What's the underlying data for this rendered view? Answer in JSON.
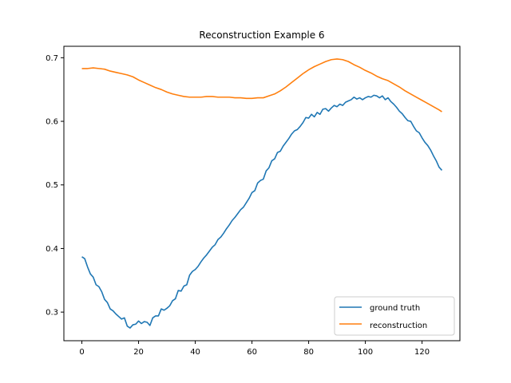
{
  "chart_data": {
    "type": "line",
    "title": "Reconstruction Example 6",
    "xlabel": "",
    "ylabel": "",
    "xlim": [
      -6.35,
      133.35
    ],
    "ylim": [
      0.255,
      0.718
    ],
    "xticks": [
      0,
      20,
      40,
      60,
      80,
      100,
      120
    ],
    "yticks": [
      0.3,
      0.4,
      0.5,
      0.6,
      0.7
    ],
    "xtick_labels": [
      "0",
      "20",
      "40",
      "60",
      "80",
      "100",
      "120"
    ],
    "ytick_labels": [
      "0.3",
      "0.4",
      "0.5",
      "0.6",
      "0.7"
    ],
    "grid": false,
    "legend_position": "lower-right",
    "series": [
      {
        "name": "ground truth",
        "color": "#1f77b4",
        "points": [
          [
            0,
            0.387
          ],
          [
            1,
            0.384
          ],
          [
            2,
            0.371
          ],
          [
            3,
            0.36
          ],
          [
            4,
            0.355
          ],
          [
            5,
            0.343
          ],
          [
            6,
            0.34
          ],
          [
            7,
            0.332
          ],
          [
            8,
            0.32
          ],
          [
            9,
            0.315
          ],
          [
            10,
            0.305
          ],
          [
            11,
            0.302
          ],
          [
            12,
            0.297
          ],
          [
            13,
            0.293
          ],
          [
            14,
            0.289
          ],
          [
            15,
            0.291
          ],
          [
            16,
            0.278
          ],
          [
            17,
            0.275
          ],
          [
            18,
            0.28
          ],
          [
            19,
            0.281
          ],
          [
            20,
            0.286
          ],
          [
            21,
            0.282
          ],
          [
            22,
            0.285
          ],
          [
            23,
            0.284
          ],
          [
            24,
            0.279
          ],
          [
            25,
            0.291
          ],
          [
            26,
            0.294
          ],
          [
            27,
            0.294
          ],
          [
            28,
            0.305
          ],
          [
            29,
            0.303
          ],
          [
            30,
            0.306
          ],
          [
            31,
            0.31
          ],
          [
            32,
            0.318
          ],
          [
            33,
            0.321
          ],
          [
            34,
            0.334
          ],
          [
            35,
            0.333
          ],
          [
            36,
            0.341
          ],
          [
            37,
            0.343
          ],
          [
            38,
            0.358
          ],
          [
            39,
            0.364
          ],
          [
            40,
            0.367
          ],
          [
            41,
            0.372
          ],
          [
            42,
            0.379
          ],
          [
            43,
            0.385
          ],
          [
            44,
            0.39
          ],
          [
            45,
            0.396
          ],
          [
            46,
            0.402
          ],
          [
            47,
            0.406
          ],
          [
            48,
            0.414
          ],
          [
            49,
            0.418
          ],
          [
            50,
            0.424
          ],
          [
            51,
            0.431
          ],
          [
            52,
            0.437
          ],
          [
            53,
            0.444
          ],
          [
            54,
            0.449
          ],
          [
            55,
            0.455
          ],
          [
            56,
            0.461
          ],
          [
            57,
            0.465
          ],
          [
            58,
            0.472
          ],
          [
            59,
            0.479
          ],
          [
            60,
            0.488
          ],
          [
            61,
            0.491
          ],
          [
            62,
            0.503
          ],
          [
            63,
            0.507
          ],
          [
            64,
            0.509
          ],
          [
            65,
            0.522
          ],
          [
            66,
            0.527
          ],
          [
            67,
            0.538
          ],
          [
            68,
            0.541
          ],
          [
            69,
            0.551
          ],
          [
            70,
            0.553
          ],
          [
            71,
            0.561
          ],
          [
            72,
            0.567
          ],
          [
            73,
            0.573
          ],
          [
            74,
            0.58
          ],
          [
            75,
            0.585
          ],
          [
            76,
            0.587
          ],
          [
            77,
            0.592
          ],
          [
            78,
            0.598
          ],
          [
            79,
            0.606
          ],
          [
            80,
            0.605
          ],
          [
            81,
            0.611
          ],
          [
            82,
            0.607
          ],
          [
            83,
            0.614
          ],
          [
            84,
            0.611
          ],
          [
            85,
            0.619
          ],
          [
            86,
            0.62
          ],
          [
            87,
            0.616
          ],
          [
            88,
            0.621
          ],
          [
            89,
            0.625
          ],
          [
            90,
            0.623
          ],
          [
            91,
            0.627
          ],
          [
            92,
            0.625
          ],
          [
            93,
            0.63
          ],
          [
            94,
            0.632
          ],
          [
            95,
            0.634
          ],
          [
            96,
            0.638
          ],
          [
            97,
            0.635
          ],
          [
            98,
            0.637
          ],
          [
            99,
            0.634
          ],
          [
            100,
            0.637
          ],
          [
            101,
            0.639
          ],
          [
            102,
            0.638
          ],
          [
            103,
            0.641
          ],
          [
            104,
            0.64
          ],
          [
            105,
            0.637
          ],
          [
            106,
            0.64
          ],
          [
            107,
            0.634
          ],
          [
            108,
            0.637
          ],
          [
            109,
            0.631
          ],
          [
            110,
            0.627
          ],
          [
            111,
            0.622
          ],
          [
            112,
            0.616
          ],
          [
            113,
            0.612
          ],
          [
            114,
            0.606
          ],
          [
            115,
            0.601
          ],
          [
            116,
            0.6
          ],
          [
            117,
            0.592
          ],
          [
            118,
            0.585
          ],
          [
            119,
            0.582
          ],
          [
            120,
            0.574
          ],
          [
            121,
            0.567
          ],
          [
            122,
            0.562
          ],
          [
            123,
            0.555
          ],
          [
            124,
            0.546
          ],
          [
            125,
            0.538
          ],
          [
            126,
            0.528
          ],
          [
            127,
            0.523
          ]
        ]
      },
      {
        "name": "reconstruction",
        "color": "#ff7f0e",
        "points": [
          [
            0,
            0.683
          ],
          [
            2,
            0.683
          ],
          [
            4,
            0.684
          ],
          [
            6,
            0.683
          ],
          [
            8,
            0.682
          ],
          [
            10,
            0.679
          ],
          [
            12,
            0.677
          ],
          [
            14,
            0.675
          ],
          [
            16,
            0.673
          ],
          [
            18,
            0.67
          ],
          [
            20,
            0.665
          ],
          [
            22,
            0.661
          ],
          [
            24,
            0.657
          ],
          [
            26,
            0.653
          ],
          [
            28,
            0.65
          ],
          [
            30,
            0.646
          ],
          [
            32,
            0.643
          ],
          [
            34,
            0.641
          ],
          [
            36,
            0.639
          ],
          [
            38,
            0.638
          ],
          [
            40,
            0.638
          ],
          [
            42,
            0.638
          ],
          [
            44,
            0.639
          ],
          [
            46,
            0.639
          ],
          [
            48,
            0.638
          ],
          [
            50,
            0.638
          ],
          [
            52,
            0.638
          ],
          [
            54,
            0.637
          ],
          [
            56,
            0.637
          ],
          [
            58,
            0.636
          ],
          [
            60,
            0.636
          ],
          [
            62,
            0.637
          ],
          [
            64,
            0.637
          ],
          [
            66,
            0.64
          ],
          [
            68,
            0.643
          ],
          [
            70,
            0.648
          ],
          [
            72,
            0.654
          ],
          [
            74,
            0.661
          ],
          [
            76,
            0.668
          ],
          [
            78,
            0.675
          ],
          [
            80,
            0.681
          ],
          [
            82,
            0.686
          ],
          [
            84,
            0.69
          ],
          [
            86,
            0.694
          ],
          [
            88,
            0.697
          ],
          [
            90,
            0.698
          ],
          [
            92,
            0.697
          ],
          [
            94,
            0.694
          ],
          [
            96,
            0.689
          ],
          [
            98,
            0.685
          ],
          [
            100,
            0.68
          ],
          [
            102,
            0.676
          ],
          [
            104,
            0.671
          ],
          [
            106,
            0.667
          ],
          [
            108,
            0.664
          ],
          [
            110,
            0.659
          ],
          [
            112,
            0.654
          ],
          [
            114,
            0.648
          ],
          [
            116,
            0.643
          ],
          [
            118,
            0.638
          ],
          [
            120,
            0.633
          ],
          [
            122,
            0.628
          ],
          [
            124,
            0.623
          ],
          [
            126,
            0.618
          ],
          [
            127,
            0.615
          ]
        ]
      }
    ]
  },
  "legend": {
    "ground_truth_label": "ground truth",
    "reconstruction_label": "reconstruction"
  }
}
